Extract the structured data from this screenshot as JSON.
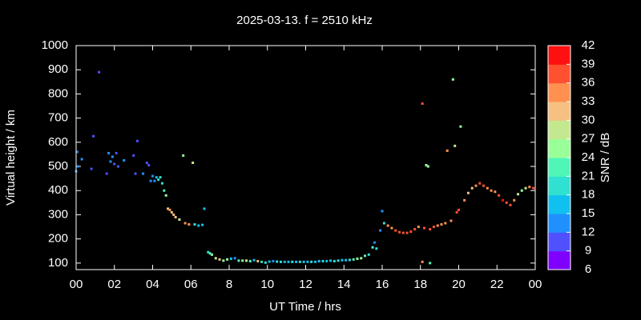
{
  "chart_data": {
    "type": "scatter",
    "title": "2025-03-13. f = 2510 kHz",
    "x_label": "UT Time / hrs",
    "y_label": "Virtual height / km",
    "colorbar_label": "SNR / dB",
    "xlim": [
      0,
      24
    ],
    "ylim": [
      73,
      1000
    ],
    "xticks": [
      {
        "value": 0,
        "label": "00"
      },
      {
        "value": 2,
        "label": "02"
      },
      {
        "value": 4,
        "label": "04"
      },
      {
        "value": 6,
        "label": "06"
      },
      8,
      10,
      12,
      14,
      16,
      18,
      20,
      22,
      {
        "value": 24,
        "label": "00"
      }
    ],
    "yticks": [
      100,
      200,
      300,
      400,
      500,
      600,
      700,
      800,
      900,
      1000
    ],
    "clim": [
      6,
      42
    ],
    "cticks": [
      6,
      9,
      12,
      15,
      18,
      21,
      24,
      27,
      30,
      33,
      36,
      39,
      42
    ],
    "colorbar_colors": [
      "#8000ff",
      "#5050ff",
      "#2090ff",
      "#10c0ee",
      "#30e0d0",
      "#50f5b8",
      "#99ff99",
      "#c4e890",
      "#f5c080",
      "#ff9050",
      "#ff5030",
      "#ff1010"
    ],
    "x": [
      0.0,
      0.05,
      0.1,
      0.3,
      0.8,
      0.9,
      1.2,
      1.6,
      1.7,
      1.8,
      1.9,
      2.0,
      2.1,
      2.2,
      2.5,
      3.0,
      3.1,
      3.2,
      3.5,
      3.7,
      3.8,
      3.9,
      4.0,
      4.1,
      4.2,
      4.3,
      4.4,
      4.5,
      4.6,
      4.7,
      4.8,
      4.9,
      5.0,
      5.1,
      5.2,
      5.4,
      5.6,
      5.7,
      5.9,
      6.1,
      6.2,
      6.4,
      6.6,
      6.7,
      6.9,
      7.0,
      7.1,
      7.3,
      7.5,
      7.7,
      7.9,
      8.1,
      8.3,
      8.5,
      8.7,
      8.9,
      9.1,
      9.3,
      9.5,
      9.7,
      9.9,
      10.1,
      10.3,
      10.5,
      10.7,
      10.9,
      11.1,
      11.3,
      11.5,
      11.7,
      11.9,
      12.1,
      12.3,
      12.5,
      12.7,
      12.9,
      13.1,
      13.3,
      13.5,
      13.7,
      13.9,
      14.1,
      14.3,
      14.5,
      14.7,
      14.9,
      15.1,
      15.3,
      15.5,
      15.6,
      15.7,
      15.9,
      16.0,
      16.1,
      16.3,
      16.5,
      16.7,
      16.9,
      17.1,
      17.3,
      17.5,
      17.7,
      17.9,
      18.1,
      18.1,
      18.2,
      18.3,
      18.4,
      18.5,
      18.5,
      18.7,
      18.9,
      19.1,
      19.3,
      19.4,
      19.6,
      19.7,
      19.8,
      19.9,
      20.0,
      20.1,
      20.3,
      20.5,
      20.7,
      20.9,
      21.1,
      21.3,
      21.5,
      21.7,
      21.9,
      22.1,
      22.3,
      22.5,
      22.7,
      22.9,
      23.1,
      23.3,
      23.5,
      23.7,
      23.9
    ],
    "values": [
      480,
      560,
      500,
      530,
      490,
      625,
      890,
      470,
      555,
      520,
      540,
      510,
      555,
      500,
      525,
      545,
      470,
      605,
      470,
      515,
      505,
      440,
      460,
      440,
      455,
      445,
      455,
      430,
      400,
      380,
      325,
      320,
      310,
      300,
      290,
      280,
      545,
      265,
      260,
      515,
      260,
      255,
      258,
      325,
      145,
      140,
      135,
      120,
      115,
      110,
      115,
      118,
      120,
      110,
      110,
      110,
      108,
      112,
      108,
      105,
      102,
      106,
      108,
      106,
      105,
      105,
      105,
      105,
      105,
      105,
      105,
      105,
      105,
      105,
      108,
      108,
      108,
      110,
      108,
      110,
      112,
      112,
      113,
      115,
      118,
      120,
      130,
      135,
      165,
      185,
      160,
      235,
      315,
      265,
      255,
      245,
      235,
      228,
      225,
      225,
      230,
      240,
      250,
      760,
      105,
      245,
      505,
      500,
      100,
      240,
      250,
      255,
      260,
      265,
      565,
      275,
      860,
      585,
      310,
      320,
      665,
      360,
      390,
      410,
      420,
      430,
      420,
      410,
      400,
      395,
      380,
      360,
      350,
      340,
      360,
      385,
      400,
      410,
      415,
      410
    ],
    "snr": [
      12,
      12,
      14,
      14,
      11,
      10,
      10,
      11,
      12,
      12,
      12,
      11,
      10,
      11,
      12,
      11,
      10,
      10,
      12,
      11,
      11,
      13,
      13,
      12,
      16,
      18,
      20,
      19,
      22,
      24,
      32,
      33,
      32,
      31,
      30,
      27,
      25,
      34,
      34,
      29,
      18,
      17,
      17,
      15,
      20,
      23,
      24,
      28,
      30,
      26,
      25,
      17,
      14,
      22,
      24,
      27,
      22,
      16,
      30,
      20,
      18,
      16,
      14,
      18,
      20,
      15,
      17,
      18,
      15,
      18,
      16,
      15,
      18,
      15,
      16,
      18,
      15,
      16,
      20,
      18,
      16,
      17,
      20,
      23,
      24,
      25,
      22,
      20,
      22,
      14,
      20,
      14,
      14,
      19,
      33,
      34,
      36,
      37,
      37,
      38,
      37,
      36,
      34,
      37,
      33,
      36,
      26,
      25,
      21,
      37,
      36,
      35,
      35,
      35,
      35,
      34,
      25,
      29,
      37,
      38,
      26,
      33,
      31,
      30,
      33,
      36,
      36,
      34,
      33,
      35,
      38,
      40,
      38,
      36,
      33,
      29,
      26,
      27,
      34,
      36
    ]
  }
}
